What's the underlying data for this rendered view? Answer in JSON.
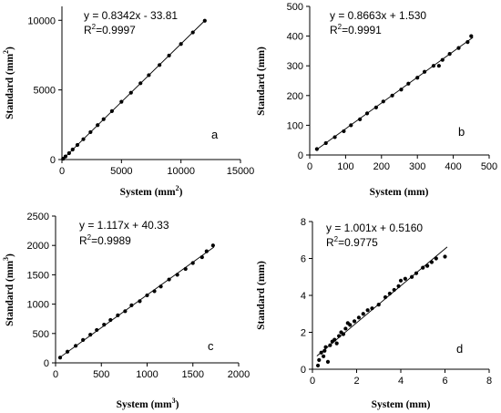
{
  "chart_data": [
    {
      "type": "scatter",
      "panel_label": "a",
      "equation": "y = 0.8342x - 33.81",
      "r2": "=0.9997",
      "xlabel": {
        "text": "System (mm",
        "sup": "2",
        "suffix": ")"
      },
      "ylabel": {
        "text": "Standard (mm",
        "sup": "2",
        "suffix": ")"
      },
      "xlim": [
        0,
        15000
      ],
      "ylim": [
        0,
        11000
      ],
      "xticks": [
        0,
        5000,
        10000,
        15000
      ],
      "yticks": [
        0,
        5000,
        10000
      ],
      "trendline": {
        "slope": 0.8342,
        "intercept": -33.81,
        "x": [
          0,
          12000
        ]
      },
      "points": [
        [
          100,
          60
        ],
        [
          300,
          220
        ],
        [
          600,
          460
        ],
        [
          900,
          720
        ],
        [
          1300,
          1050
        ],
        [
          1800,
          1460
        ],
        [
          2400,
          1970
        ],
        [
          3000,
          2470
        ],
        [
          3500,
          2900
        ],
        [
          4200,
          3480
        ],
        [
          5000,
          4150
        ],
        [
          5800,
          4800
        ],
        [
          6600,
          5480
        ],
        [
          7300,
          6060
        ],
        [
          8200,
          6790
        ],
        [
          9000,
          7470
        ],
        [
          10000,
          8300
        ],
        [
          11000,
          9130
        ],
        [
          12000,
          9970
        ]
      ]
    },
    {
      "type": "scatter",
      "panel_label": "b",
      "equation": "y = 0.8663x + 1.530",
      "r2": "=0.9991",
      "xlabel": {
        "text": "System (mm)",
        "sup": "",
        "suffix": ""
      },
      "ylabel": {
        "text": "Standard (mm)",
        "sup": "",
        "suffix": ""
      },
      "xlim": [
        0,
        500
      ],
      "ylim": [
        0,
        500
      ],
      "xticks": [
        0,
        100,
        200,
        300,
        400,
        500
      ],
      "yticks": [
        0,
        100,
        200,
        300,
        400,
        500
      ],
      "trendline": {
        "slope": 0.8663,
        "intercept": 1.53,
        "x": [
          20,
          455
        ]
      },
      "points": [
        [
          20,
          20
        ],
        [
          45,
          40
        ],
        [
          70,
          60
        ],
        [
          95,
          80
        ],
        [
          115,
          100
        ],
        [
          140,
          120
        ],
        [
          160,
          140
        ],
        [
          185,
          160
        ],
        [
          205,
          180
        ],
        [
          230,
          200
        ],
        [
          255,
          220
        ],
        [
          275,
          240
        ],
        [
          300,
          260
        ],
        [
          320,
          280
        ],
        [
          345,
          300
        ],
        [
          360,
          300
        ],
        [
          370,
          320
        ],
        [
          390,
          340
        ],
        [
          415,
          360
        ],
        [
          440,
          380
        ],
        [
          450,
          400
        ]
      ]
    },
    {
      "type": "scatter",
      "panel_label": "c",
      "equation": "y = 1.117x + 40.33",
      "r2": "=0.9989",
      "xlabel": {
        "text": "System (mm",
        "sup": "3",
        "suffix": ")"
      },
      "ylabel": {
        "text": "Standard (mm",
        "sup": "3",
        "suffix": ")"
      },
      "xlim": [
        0,
        2000
      ],
      "ylim": [
        0,
        2500
      ],
      "xticks": [
        0,
        500,
        1000,
        1500,
        2000
      ],
      "yticks": [
        0,
        500,
        1000,
        1500,
        2000,
        2500
      ],
      "trendline": {
        "slope": 1.117,
        "intercept": 40.33,
        "x": [
          50,
          1730
        ]
      },
      "points": [
        [
          50,
          90
        ],
        [
          130,
          190
        ],
        [
          220,
          290
        ],
        [
          300,
          390
        ],
        [
          380,
          480
        ],
        [
          450,
          560
        ],
        [
          530,
          650
        ],
        [
          600,
          730
        ],
        [
          680,
          810
        ],
        [
          760,
          880
        ],
        [
          830,
          980
        ],
        [
          920,
          1050
        ],
        [
          1000,
          1150
        ],
        [
          1080,
          1220
        ],
        [
          1150,
          1300
        ],
        [
          1240,
          1420
        ],
        [
          1330,
          1500
        ],
        [
          1420,
          1600
        ],
        [
          1500,
          1700
        ],
        [
          1600,
          1800
        ],
        [
          1650,
          1900
        ],
        [
          1720,
          2000
        ]
      ]
    },
    {
      "type": "scatter",
      "panel_label": "d",
      "equation": "y = 1.001x + 0.5160",
      "r2": "=0.9775",
      "xlabel": {
        "text": "System (mm)",
        "sup": "",
        "suffix": ""
      },
      "ylabel": {
        "text": "Standard (mm)",
        "sup": "",
        "suffix": ""
      },
      "xlim": [
        0,
        8
      ],
      "ylim": [
        0,
        8
      ],
      "xticks": [
        0,
        2,
        4,
        6,
        8
      ],
      "yticks": [
        0,
        2,
        4,
        6,
        8
      ],
      "trendline": {
        "slope": 1.001,
        "intercept": 0.516,
        "x": [
          0.2,
          6.1
        ]
      },
      "points": [
        [
          0.25,
          0.2
        ],
        [
          0.3,
          0.5
        ],
        [
          0.4,
          0.9
        ],
        [
          0.5,
          0.7
        ],
        [
          0.55,
          1.0
        ],
        [
          0.6,
          1.2
        ],
        [
          0.7,
          0.4
        ],
        [
          0.8,
          1.3
        ],
        [
          0.9,
          1.5
        ],
        [
          1.0,
          1.6
        ],
        [
          1.1,
          1.4
        ],
        [
          1.2,
          1.8
        ],
        [
          1.3,
          2.0
        ],
        [
          1.4,
          1.9
        ],
        [
          1.5,
          2.2
        ],
        [
          1.6,
          2.5
        ],
        [
          1.7,
          2.4
        ],
        [
          1.9,
          2.6
        ],
        [
          2.1,
          2.8
        ],
        [
          2.3,
          3.0
        ],
        [
          2.5,
          3.2
        ],
        [
          2.7,
          3.3
        ],
        [
          3.0,
          3.5
        ],
        [
          3.3,
          3.9
        ],
        [
          3.5,
          4.1
        ],
        [
          3.7,
          4.3
        ],
        [
          3.9,
          4.5
        ],
        [
          4.0,
          4.8
        ],
        [
          4.2,
          4.9
        ],
        [
          4.5,
          5.0
        ],
        [
          4.7,
          5.2
        ],
        [
          5.0,
          5.5
        ],
        [
          5.2,
          5.6
        ],
        [
          5.4,
          5.8
        ],
        [
          5.6,
          6.0
        ],
        [
          6.0,
          6.1
        ]
      ]
    }
  ]
}
